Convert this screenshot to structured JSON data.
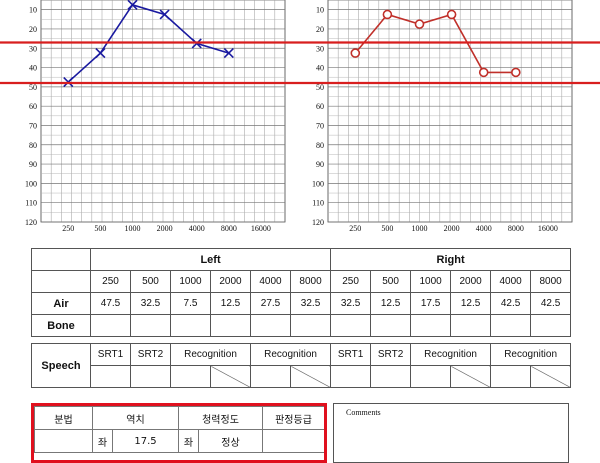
{
  "chart_data": [
    {
      "type": "line",
      "title": "",
      "xlabel": "",
      "ylabel": "",
      "x": [
        250,
        500,
        1000,
        2000,
        4000,
        8000
      ],
      "x_tick_labels": [
        "250",
        "500",
        "1000",
        "2000",
        "4000",
        "8000",
        "16000"
      ],
      "y_tick_labels": [
        "10",
        "20",
        "30",
        "40",
        "50",
        "60",
        "70",
        "80",
        "90",
        "100",
        "110",
        "120"
      ],
      "ylim": [
        5,
        120
      ],
      "y_inverted": true,
      "grid": true,
      "series": [
        {
          "values": [
            47.5,
            32.5,
            7.5,
            12.5,
            27.5,
            32.5
          ],
          "marker": "x",
          "color": "#1a1aa0"
        }
      ],
      "reference_lines": [
        27,
        48
      ],
      "reference_color": "#d81e1e"
    },
    {
      "type": "line",
      "title": "",
      "xlabel": "",
      "ylabel": "",
      "x": [
        250,
        500,
        1000,
        2000,
        4000,
        8000
      ],
      "x_tick_labels": [
        "250",
        "500",
        "1000",
        "2000",
        "4000",
        "8000",
        "16000"
      ],
      "y_tick_labels": [
        "10",
        "20",
        "30",
        "40",
        "50",
        "60",
        "70",
        "80",
        "90",
        "100",
        "110",
        "120"
      ],
      "ylim": [
        5,
        120
      ],
      "y_inverted": true,
      "grid": true,
      "series": [
        {
          "values": [
            32.5,
            12.5,
            17.5,
            12.5,
            42.5,
            42.5
          ],
          "marker": "o",
          "color": "#c0302a"
        }
      ],
      "reference_lines": [
        27,
        48
      ],
      "reference_color": "#d81e1e"
    }
  ],
  "table": {
    "left_label": "Left",
    "right_label": "Right",
    "freqs": [
      "250",
      "500",
      "1000",
      "2000",
      "4000",
      "8000"
    ],
    "air_label": "Air",
    "bone_label": "Bone",
    "speech_label": "Speech",
    "air_left": [
      "47.5",
      "32.5",
      "7.5",
      "12.5",
      "27.5",
      "32.5"
    ],
    "air_right": [
      "32.5",
      "12.5",
      "17.5",
      "12.5",
      "42.5",
      "42.5"
    ],
    "srt1": "SRT1",
    "srt2": "SRT2",
    "recognition": "Recognition"
  },
  "judgment": {
    "method": "분법",
    "threshold": "역치",
    "hearing_level": "청력정도",
    "grade": "판정등급",
    "left_short": "좌",
    "left_value": "17.5",
    "left_level": "정상"
  },
  "comments_label": "Comments"
}
